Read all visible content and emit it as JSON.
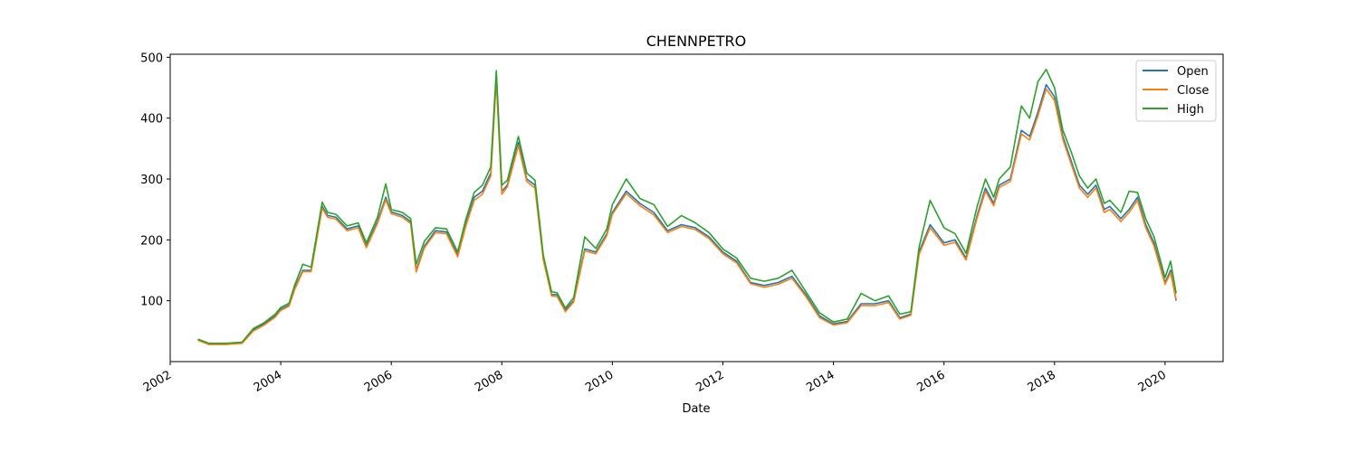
{
  "chart_data": {
    "type": "line",
    "title": "CHENNPETRO",
    "xlabel": "Date",
    "ylabel": "",
    "xlim": [
      2002.0,
      2021.05
    ],
    "ylim": [
      0,
      505
    ],
    "x_ticks": [
      2002,
      2004,
      2006,
      2008,
      2010,
      2012,
      2014,
      2016,
      2018,
      2020
    ],
    "x_tick_labels": [
      "2002",
      "2004",
      "2006",
      "2008",
      "2010",
      "2012",
      "2014",
      "2016",
      "2018",
      "2020"
    ],
    "y_ticks": [
      100,
      200,
      300,
      400,
      500
    ],
    "y_tick_labels": [
      "100",
      "200",
      "300",
      "400",
      "500"
    ],
    "grid": false,
    "legend_position": "top-right",
    "x": [
      2002.5,
      2002.7,
      2003.0,
      2003.3,
      2003.5,
      2003.7,
      2003.9,
      2004.0,
      2004.15,
      2004.25,
      2004.4,
      2004.55,
      2004.75,
      2004.85,
      2005.0,
      2005.2,
      2005.4,
      2005.55,
      2005.75,
      2005.9,
      2006.0,
      2006.2,
      2006.35,
      2006.45,
      2006.6,
      2006.8,
      2007.0,
      2007.2,
      2007.35,
      2007.5,
      2007.65,
      2007.8,
      2007.9,
      2008.0,
      2008.1,
      2008.3,
      2008.45,
      2008.6,
      2008.75,
      2008.9,
      2009.0,
      2009.15,
      2009.3,
      2009.5,
      2009.7,
      2009.9,
      2010.0,
      2010.25,
      2010.5,
      2010.75,
      2011.0,
      2011.25,
      2011.5,
      2011.75,
      2012.0,
      2012.25,
      2012.5,
      2012.75,
      2013.0,
      2013.25,
      2013.5,
      2013.75,
      2014.0,
      2014.25,
      2014.5,
      2014.75,
      2015.0,
      2015.2,
      2015.4,
      2015.55,
      2015.75,
      2016.0,
      2016.2,
      2016.4,
      2016.6,
      2016.75,
      2016.9,
      2017.0,
      2017.2,
      2017.4,
      2017.55,
      2017.7,
      2017.85,
      2018.0,
      2018.15,
      2018.3,
      2018.45,
      2018.6,
      2018.75,
      2018.9,
      2019.0,
      2019.2,
      2019.35,
      2019.5,
      2019.65,
      2019.8,
      2020.0,
      2020.1,
      2020.2
    ],
    "series": [
      {
        "name": "Open",
        "color": "#1f77b4",
        "values": [
          36,
          29,
          29,
          31,
          52,
          62,
          75,
          86,
          93,
          120,
          150,
          150,
          255,
          240,
          237,
          218,
          223,
          190,
          230,
          270,
          246,
          240,
          230,
          150,
          190,
          215,
          213,
          175,
          226,
          270,
          280,
          310,
          470,
          280,
          290,
          360,
          300,
          290,
          170,
          110,
          110,
          85,
          100,
          185,
          180,
          210,
          245,
          280,
          260,
          245,
          215,
          225,
          220,
          205,
          180,
          165,
          130,
          125,
          130,
          140,
          110,
          75,
          62,
          66,
          95,
          95,
          100,
          72,
          78,
          180,
          225,
          195,
          200,
          170,
          240,
          285,
          260,
          290,
          300,
          380,
          370,
          410,
          455,
          435,
          370,
          330,
          290,
          275,
          290,
          250,
          255,
          235,
          250,
          270,
          225,
          195,
          130,
          150,
          100
        ]
      },
      {
        "name": "Close",
        "color": "#ff7f0e",
        "values": [
          35,
          28,
          28,
          30,
          50,
          60,
          73,
          84,
          91,
          118,
          148,
          148,
          252,
          237,
          234,
          215,
          220,
          187,
          227,
          266,
          243,
          237,
          227,
          147,
          187,
          212,
          210,
          172,
          223,
          265,
          275,
          305,
          462,
          275,
          287,
          355,
          296,
          285,
          167,
          108,
          107,
          82,
          98,
          182,
          177,
          207,
          242,
          276,
          256,
          241,
          212,
          222,
          217,
          202,
          177,
          162,
          128,
          122,
          127,
          137,
          107,
          72,
          60,
          64,
          92,
          92,
          97,
          70,
          76,
          176,
          220,
          191,
          196,
          167,
          236,
          280,
          256,
          286,
          296,
          374,
          364,
          404,
          448,
          429,
          365,
          325,
          285,
          270,
          285,
          245,
          250,
          230,
          245,
          265,
          220,
          190,
          127,
          146,
          102
        ]
      },
      {
        "name": "High",
        "color": "#2ca02c",
        "values": [
          37,
          30,
          30,
          32,
          54,
          64,
          78,
          89,
          96,
          125,
          160,
          155,
          262,
          245,
          242,
          223,
          228,
          195,
          237,
          292,
          250,
          245,
          235,
          160,
          198,
          220,
          218,
          180,
          234,
          278,
          290,
          320,
          478,
          290,
          298,
          370,
          310,
          298,
          175,
          115,
          113,
          88,
          105,
          205,
          186,
          218,
          258,
          300,
          268,
          258,
          222,
          240,
          228,
          212,
          185,
          170,
          137,
          132,
          137,
          150,
          115,
          80,
          65,
          70,
          112,
          100,
          108,
          78,
          82,
          188,
          265,
          220,
          210,
          178,
          255,
          300,
          270,
          300,
          320,
          420,
          400,
          460,
          480,
          450,
          380,
          345,
          305,
          285,
          300,
          260,
          265,
          245,
          280,
          278,
          235,
          205,
          138,
          165,
          112
        ]
      }
    ]
  }
}
